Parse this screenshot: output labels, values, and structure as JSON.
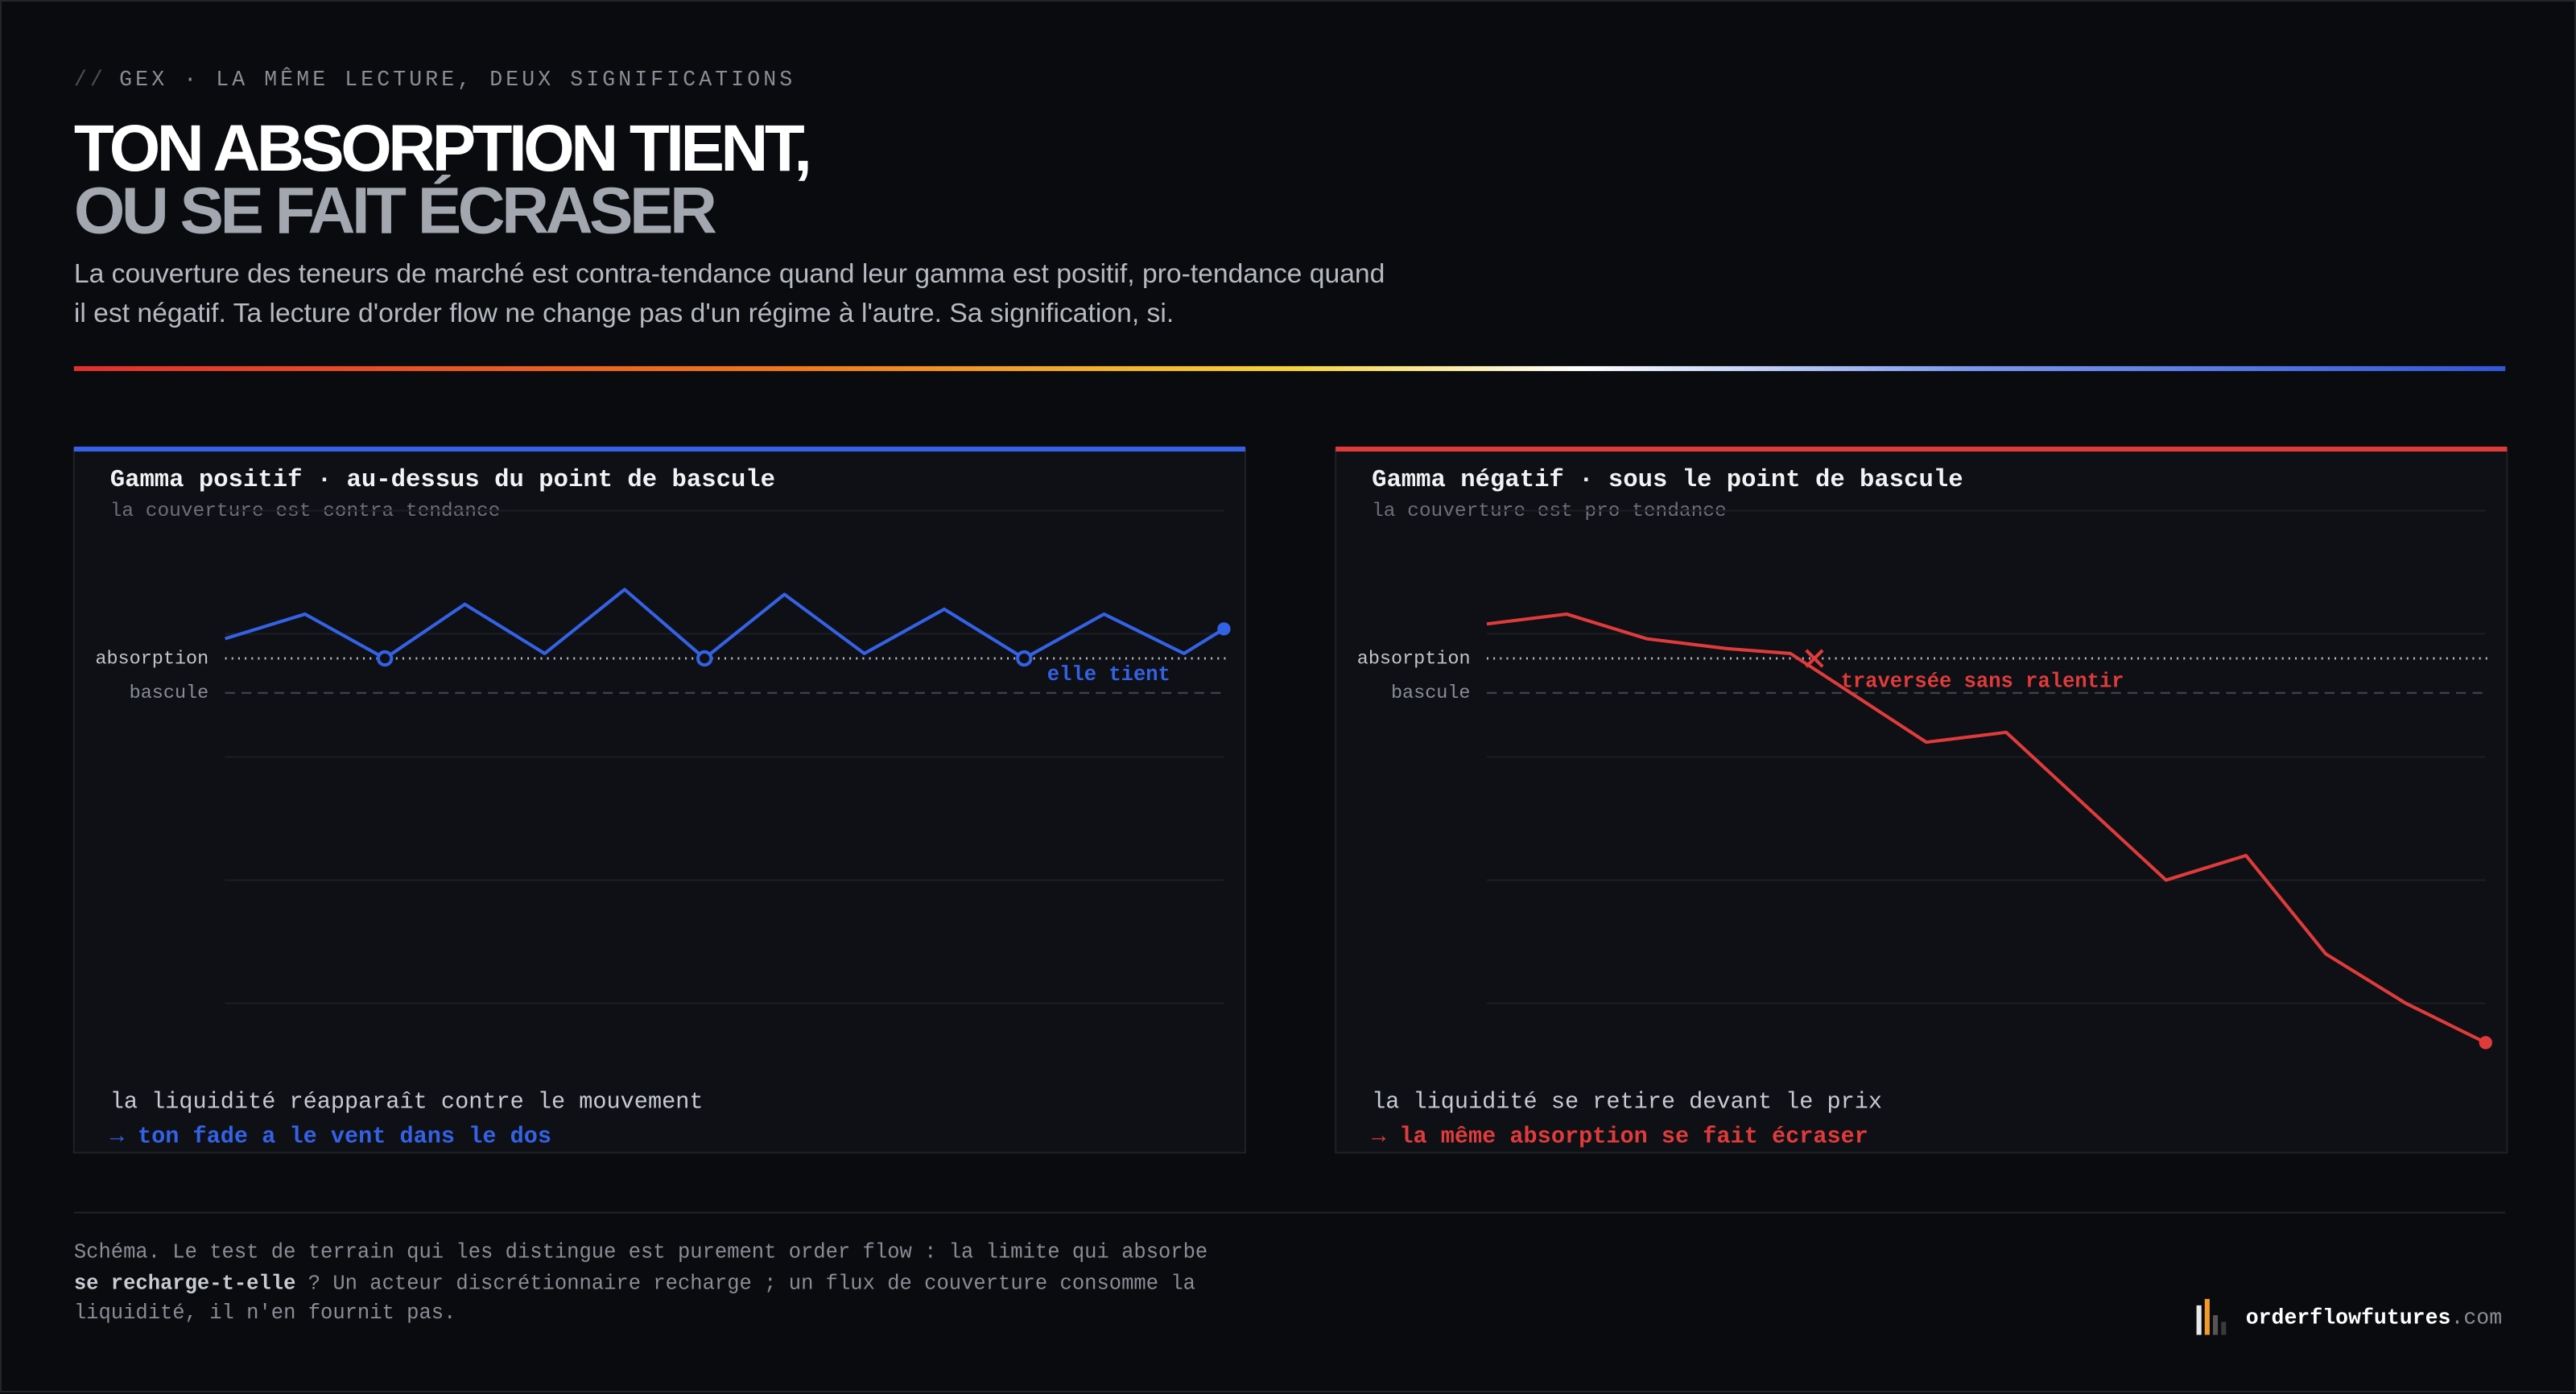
{
  "header": {
    "kicker_prefix": "//",
    "kicker": "GEX · LA MÊME LECTURE, DEUX SIGNIFICATIONS",
    "title_line1": "TON ABSORPTION TIENT,",
    "title_line2": "OU SE FAIT ÉCRASER",
    "subtitle": "La couverture des teneurs de marché est contra-tendance quand leur gamma est positif, pro-tendance quand il est négatif. Ta lecture d'order flow ne change pas d'un régime à l'autre. Sa signification, si."
  },
  "chart_data": [
    {
      "type": "line",
      "title": "Gamma positif · au-dessus du point de bascule",
      "subtitle": "la couverture est contra-tendance",
      "color": "#3462e6",
      "x": [
        0,
        1,
        2,
        3,
        4,
        5,
        6,
        7,
        8,
        9,
        10,
        11,
        12,
        12.5
      ],
      "values": [
        74,
        79,
        70,
        81,
        71,
        84,
        70,
        83,
        71,
        80,
        70,
        79,
        71,
        76
      ],
      "xlim": [
        0,
        12.5
      ],
      "ylim": [
        -10,
        110
      ],
      "yticks": [
        0,
        25,
        50,
        75,
        100
      ],
      "grid": true,
      "reference_lines": [
        {
          "label": "absorption",
          "value": 70
        },
        {
          "label": "bascule",
          "value": 63
        }
      ],
      "annotation": "elle tient",
      "caption": "la liquidité réapparaît contre le mouvement",
      "conclusion": "→ ton fade a le vent dans le dos"
    },
    {
      "type": "line",
      "title": "Gamma négatif · sous le point de bascule",
      "subtitle": "la couverture est pro-tendance",
      "color": "#e03b3b",
      "x": [
        0,
        1,
        2,
        3,
        3.8,
        5.5,
        6.5,
        8.5,
        9.5,
        10.5,
        11.5,
        12.5
      ],
      "values": [
        77,
        79,
        74,
        72,
        71,
        53,
        55,
        25,
        30,
        10,
        0,
        -8
      ],
      "xlim": [
        0,
        12.5
      ],
      "ylim": [
        -10,
        110
      ],
      "yticks": [
        0,
        25,
        50,
        75,
        100
      ],
      "grid": true,
      "reference_lines": [
        {
          "label": "absorption",
          "value": 70
        },
        {
          "label": "bascule",
          "value": 63
        }
      ],
      "crossing": {
        "x": 4.1,
        "y": 70
      },
      "annotation": "traversée sans ralentir",
      "caption": "la liquidité se retire devant le prix",
      "conclusion": "→ la même absorption se fait écraser"
    }
  ],
  "footer": {
    "text_before": "Schéma. Le test de terrain qui les distingue est purement order flow : la limite qui absorbe ",
    "emphasis": "se recharge-t-elle",
    "text_after": " ? Un acteur discrétionnaire recharge ; un flux de couverture consomme la liquidité, il n'en fournit pas."
  },
  "brand": {
    "name": "orderflowfutures",
    "tld": ".com"
  }
}
